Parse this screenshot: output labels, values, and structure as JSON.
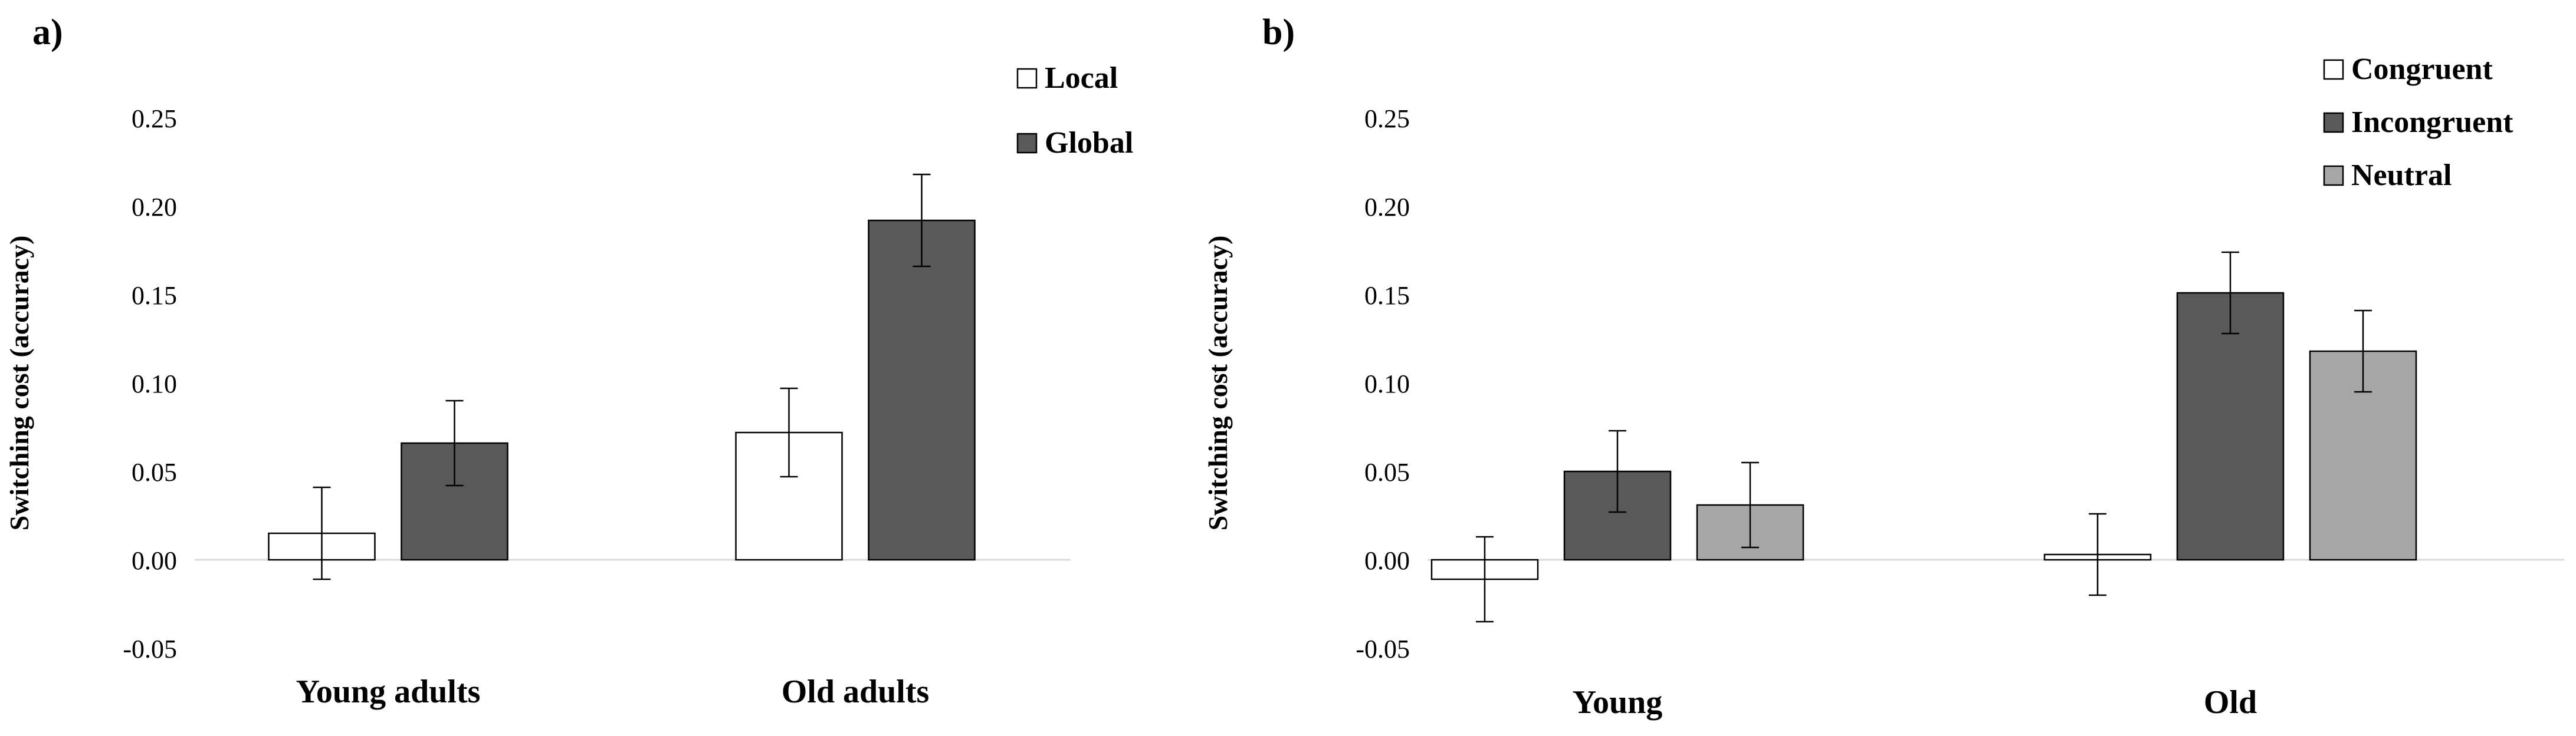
{
  "chart_data": [
    {
      "panel_label": "a)",
      "type": "bar",
      "title": "",
      "ylabel": "Switching cost (accuracy)",
      "xlabel": "",
      "ylim": [
        -0.05,
        0.25
      ],
      "yticks": [
        -0.05,
        0.0,
        0.05,
        0.1,
        0.15,
        0.2,
        0.25
      ],
      "ytick_labels": [
        "-0.05",
        "0.00",
        "0.05",
        "0.10",
        "0.15",
        "0.20",
        "0.25"
      ],
      "grid": false,
      "legend_position": "top-right",
      "categories": [
        "Young adults",
        "Old adults"
      ],
      "series": [
        {
          "name": "Local",
          "color": "#ffffff",
          "values": [
            0.015,
            0.072
          ],
          "errors": [
            0.026,
            0.025
          ]
        },
        {
          "name": "Global",
          "color": "#595959",
          "values": [
            0.066,
            0.192
          ],
          "errors": [
            0.024,
            0.026
          ]
        }
      ]
    },
    {
      "panel_label": "b)",
      "type": "bar",
      "title": "",
      "ylabel": "Switching cost (accuracy)",
      "xlabel": "",
      "ylim": [
        -0.05,
        0.25
      ],
      "yticks": [
        -0.05,
        0.0,
        0.05,
        0.1,
        0.15,
        0.2,
        0.25
      ],
      "ytick_labels": [
        "-0.05",
        "0.00",
        "0.05",
        "0.10",
        "0.15",
        "0.20",
        "0.25"
      ],
      "grid": false,
      "legend_position": "top-right",
      "categories": [
        "Young",
        "Old"
      ],
      "series": [
        {
          "name": "Congruent",
          "color": "#ffffff",
          "values": [
            -0.011,
            0.003
          ],
          "errors": [
            0.024,
            0.023
          ]
        },
        {
          "name": "Incongruent",
          "color": "#595959",
          "values": [
            0.05,
            0.151
          ],
          "errors": [
            0.023,
            0.023
          ]
        },
        {
          "name": "Neutral",
          "color": "#a6a6a6",
          "values": [
            0.031,
            0.118
          ],
          "errors": [
            0.024,
            0.023
          ]
        }
      ]
    }
  ]
}
